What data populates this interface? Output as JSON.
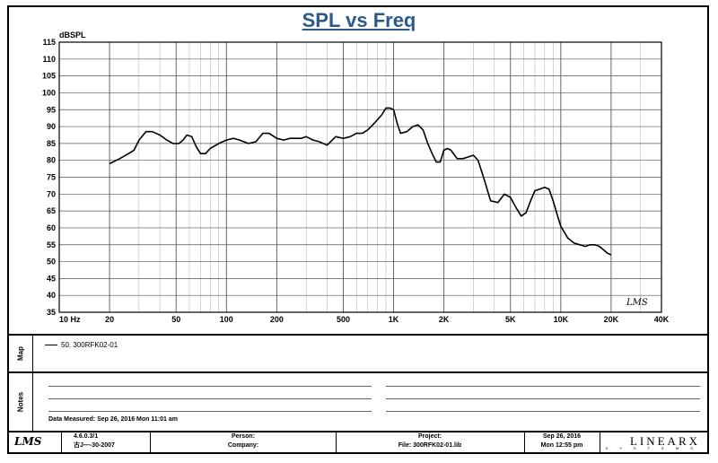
{
  "chart_data": {
    "type": "line",
    "title": "SPL vs Freq",
    "ylabel": "dBSPL",
    "xscale": "log",
    "xlim": [
      10,
      40000
    ],
    "ylim": [
      35,
      115
    ],
    "x_ticks": [
      {
        "value": 10,
        "label": "10  Hz"
      },
      {
        "value": 20,
        "label": "20"
      },
      {
        "value": 50,
        "label": "50"
      },
      {
        "value": 100,
        "label": "100"
      },
      {
        "value": 200,
        "label": "200"
      },
      {
        "value": 500,
        "label": "500"
      },
      {
        "value": 1000,
        "label": "1K"
      },
      {
        "value": 2000,
        "label": "2K"
      },
      {
        "value": 5000,
        "label": "5K"
      },
      {
        "value": 10000,
        "label": "10K"
      },
      {
        "value": 20000,
        "label": "20K"
      },
      {
        "value": 40000,
        "label": "40K"
      }
    ],
    "y_ticks": [
      35,
      40,
      45,
      50,
      55,
      60,
      65,
      70,
      75,
      80,
      85,
      90,
      95,
      100,
      105,
      110,
      115
    ],
    "grid": true,
    "series": [
      {
        "name": "50. 300RFK02-01",
        "x": [
          20,
          23,
          26,
          28,
          30,
          33,
          36,
          40,
          44,
          48,
          52,
          55,
          58,
          62,
          66,
          70,
          75,
          80,
          90,
          100,
          110,
          120,
          135,
          150,
          165,
          180,
          200,
          220,
          240,
          260,
          280,
          300,
          330,
          360,
          400,
          450,
          500,
          550,
          600,
          650,
          700,
          750,
          800,
          850,
          900,
          950,
          1000,
          1050,
          1100,
          1200,
          1300,
          1400,
          1500,
          1600,
          1700,
          1800,
          1900,
          2000,
          2100,
          2200,
          2400,
          2600,
          2800,
          3000,
          3200,
          3500,
          3800,
          4200,
          4600,
          5000,
          5400,
          5800,
          6200,
          6600,
          7000,
          7500,
          8000,
          8500,
          9000,
          9500,
          10000,
          11000,
          12000,
          13000,
          14000,
          15000,
          16000,
          17000,
          18000,
          19000,
          20000
        ],
        "y": [
          79,
          80.5,
          82,
          83,
          86,
          88.5,
          88.5,
          87.5,
          86,
          85,
          85,
          86,
          87.5,
          87,
          84,
          82,
          82,
          83.5,
          85,
          86,
          86.5,
          86,
          85,
          85.5,
          88,
          88,
          86.5,
          86,
          86.5,
          86.5,
          86.5,
          87,
          86,
          85.5,
          84.5,
          87,
          86.5,
          87,
          88,
          88,
          89,
          90.5,
          92,
          93.5,
          95.5,
          95.5,
          95,
          91,
          88,
          88.5,
          90,
          90.5,
          89,
          85,
          82,
          79.5,
          79.5,
          83,
          83.5,
          83,
          80.5,
          80.5,
          81,
          81.5,
          80,
          74,
          68,
          67.5,
          70,
          69,
          66,
          63.5,
          64.5,
          68,
          71,
          71.5,
          72,
          71.5,
          68,
          64,
          60.5,
          57,
          55.5,
          55,
          54.5,
          55,
          55,
          54.5,
          53.5,
          52.5,
          52
        ]
      }
    ]
  },
  "logo_mark": "LMS",
  "map": {
    "label": "Map",
    "legend": "50. 300RFK02-01"
  },
  "notes": {
    "label": "Notes",
    "date_measured": "Data Measured: Sep 26, 2016  Mon 11:01 am"
  },
  "footer": {
    "logo": "LMS",
    "version": "4.6.0.3/1",
    "version_code": "古J—-30-2007",
    "person_label": "Person:",
    "company_label": "Company:",
    "project_label": "Project:",
    "file_label": "File: 300RFK02-01.lib",
    "date": "Sep 26, 2016",
    "time": "Mon 12:55 pm",
    "brand": "LINEARX",
    "brand_sub": "S Y S T E M S"
  }
}
